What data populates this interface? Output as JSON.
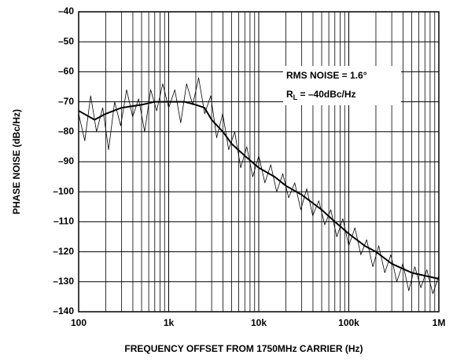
{
  "chart_data": {
    "type": "line",
    "xlabel": "FREQUENCY OFFSET FROM 1750MHz CARRIER (Hz)",
    "ylabel": "PHASE NOISE (dBc/Hz)",
    "annotation": "RMS NOISE = 1.6°",
    "annotation2": [
      "R",
      "L",
      " = –40dBc/Hz"
    ],
    "xscale": "log",
    "grid": true,
    "xlim": [
      100,
      1000000
    ],
    "ylim": [
      -140,
      -40
    ],
    "xticks": [
      {
        "value": 100,
        "label": "100"
      },
      {
        "value": 1000,
        "label": "1k"
      },
      {
        "value": 10000,
        "label": "10k"
      },
      {
        "value": 100000,
        "label": "100k"
      },
      {
        "value": 1000000,
        "label": "1M"
      }
    ],
    "xgrid_minor": [
      200,
      300,
      400,
      500,
      600,
      700,
      800,
      900,
      2000,
      3000,
      4000,
      5000,
      6000,
      7000,
      8000,
      9000,
      20000,
      30000,
      40000,
      50000,
      60000,
      70000,
      80000,
      90000,
      200000,
      300000,
      400000,
      500000,
      600000,
      700000,
      800000,
      900000
    ],
    "yticks": [
      {
        "value": -140,
        "label": "–140"
      },
      {
        "value": -130,
        "label": "–130"
      },
      {
        "value": -120,
        "label": "–120"
      },
      {
        "value": -110,
        "label": "–110"
      },
      {
        "value": -100,
        "label": "–100"
      },
      {
        "value": -90,
        "label": "–90"
      },
      {
        "value": -80,
        "label": "–80"
      },
      {
        "value": -70,
        "label": "–70"
      },
      {
        "value": -60,
        "label": "–60"
      },
      {
        "value": -50,
        "label": "–50"
      },
      {
        "value": -40,
        "label": "–40"
      }
    ],
    "series": [
      {
        "color": "#000000",
        "width": 0.8,
        "x": [
          100,
          117,
          136,
          158,
          185,
          215,
          251,
          293,
          341,
          398,
          464,
          541,
          631,
          736,
          858,
          1000,
          1170,
          1360,
          1580,
          1850,
          2150,
          2510,
          2930,
          3410,
          3980,
          4640,
          5410,
          6310,
          7360,
          8580,
          10000,
          11700,
          13600,
          15800,
          18500,
          21500,
          25100,
          29300,
          34100,
          39800,
          46400,
          54100,
          63100,
          73600,
          85800,
          100000,
          117000,
          136000,
          158000,
          185000,
          215000,
          251000,
          293000,
          341000,
          398000,
          464000,
          541000,
          631000,
          736000,
          858000,
          1000000
        ],
        "values": [
          -74,
          -83,
          -68,
          -80,
          -72,
          -86,
          -70,
          -78,
          -66,
          -75,
          -69,
          -80,
          -66,
          -73,
          -64,
          -72,
          -66,
          -77,
          -64,
          -71,
          -62,
          -74,
          -68,
          -82,
          -74,
          -86,
          -80,
          -92,
          -85,
          -95,
          -88,
          -97,
          -91,
          -100,
          -94,
          -102,
          -97,
          -106,
          -99,
          -108,
          -103,
          -111,
          -106,
          -115,
          -109,
          -118,
          -112,
          -121,
          -116,
          -125,
          -118,
          -127,
          -121,
          -130,
          -124,
          -133,
          -125,
          -132,
          -126,
          -134,
          -128
        ]
      },
      {
        "color": "#000000",
        "width": 2,
        "x": [
          100,
          150,
          200,
          300,
          500,
          700,
          1000,
          1500,
          2000,
          2500,
          3000,
          4000,
          5000,
          7000,
          10000,
          15000,
          20000,
          30000,
          50000,
          70000,
          100000,
          150000,
          200000,
          300000,
          500000,
          700000,
          1000000
        ],
        "values": [
          -73,
          -76,
          -74,
          -72,
          -71,
          -70,
          -70,
          -70,
          -71,
          -72,
          -76,
          -80,
          -84,
          -88,
          -92,
          -95,
          -98,
          -101,
          -106,
          -110,
          -114,
          -118,
          -120,
          -124,
          -127,
          -128,
          -129
        ]
      }
    ]
  }
}
